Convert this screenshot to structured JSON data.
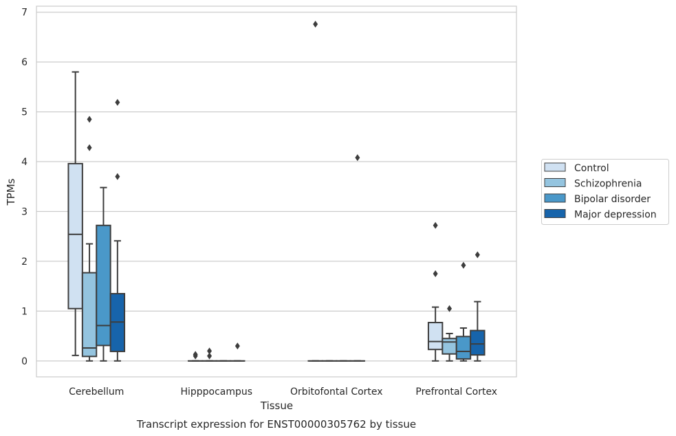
{
  "chart_data": {
    "type": "boxplot",
    "xlabel": "Tissue",
    "ylabel": "TPMs",
    "caption": "Transcript expression for ENST00000305762 by tissue",
    "ylim": [
      -0.32,
      7.12
    ],
    "yticks": [
      "0",
      "1",
      "2",
      "3",
      "4",
      "5",
      "6",
      "7"
    ],
    "grid": "horizontal",
    "legend_position": "right",
    "categories": [
      "Cerebellum",
      "Hipppocampus",
      "Orbitofontal Cortex",
      "Prefrontal Cortex"
    ],
    "series": [
      {
        "name": "Control",
        "color": "#d0e1f2",
        "boxes": [
          {
            "whislo": 0.11,
            "q1": 1.05,
            "med": 2.54,
            "q3": 3.96,
            "whishi": 5.8,
            "fliers": []
          },
          {
            "whislo": 0,
            "q1": 0,
            "med": 0,
            "q3": 0,
            "whishi": 0,
            "fliers": [
              0.1,
              0.13
            ]
          },
          {
            "whislo": 0,
            "q1": 0,
            "med": 0,
            "q3": 0,
            "whishi": 0,
            "fliers": [
              6.76
            ]
          },
          {
            "whislo": 0,
            "q1": 0.23,
            "med": 0.39,
            "q3": 0.77,
            "whishi": 1.08,
            "fliers": [
              1.75,
              2.72
            ]
          }
        ]
      },
      {
        "name": "Schizophrenia",
        "color": "#94c4df",
        "boxes": [
          {
            "whislo": 0,
            "q1": 0.09,
            "med": 0.26,
            "q3": 1.77,
            "whishi": 2.35,
            "fliers": [
              4.28,
              4.85
            ]
          },
          {
            "whislo": 0,
            "q1": 0,
            "med": 0,
            "q3": 0,
            "whishi": 0,
            "fliers": [
              0.1,
              0.2
            ]
          },
          {
            "whislo": 0,
            "q1": 0,
            "med": 0,
            "q3": 0,
            "whishi": 0,
            "fliers": []
          },
          {
            "whislo": 0,
            "q1": 0.14,
            "med": 0.38,
            "q3": 0.45,
            "whishi": 0.55,
            "fliers": [
              1.05
            ]
          }
        ]
      },
      {
        "name": "Bipolar disorder",
        "color": "#4a98c9",
        "boxes": [
          {
            "whislo": 0,
            "q1": 0.31,
            "med": 0.71,
            "q3": 2.72,
            "whishi": 3.48,
            "fliers": []
          },
          {
            "whislo": 0,
            "q1": 0,
            "med": 0,
            "q3": 0,
            "whishi": 0,
            "fliers": []
          },
          {
            "whislo": 0,
            "q1": 0,
            "med": 0,
            "q3": 0,
            "whishi": 0,
            "fliers": []
          },
          {
            "whislo": 0,
            "q1": 0.04,
            "med": 0.19,
            "q3": 0.49,
            "whishi": 0.66,
            "fliers": [
              1.92
            ]
          }
        ]
      },
      {
        "name": "Major depression",
        "color": "#1764ab",
        "boxes": [
          {
            "whislo": 0,
            "q1": 0.19,
            "med": 0.78,
            "q3": 1.35,
            "whishi": 2.41,
            "fliers": [
              3.7,
              5.19
            ]
          },
          {
            "whislo": 0,
            "q1": 0,
            "med": 0,
            "q3": 0,
            "whishi": 0,
            "fliers": [
              0.3
            ]
          },
          {
            "whislo": 0,
            "q1": 0,
            "med": 0,
            "q3": 0,
            "whishi": 0,
            "fliers": [
              4.08
            ]
          },
          {
            "whislo": 0,
            "q1": 0.12,
            "med": 0.34,
            "q3": 0.61,
            "whishi": 1.19,
            "fliers": [
              2.13
            ]
          }
        ]
      }
    ]
  }
}
